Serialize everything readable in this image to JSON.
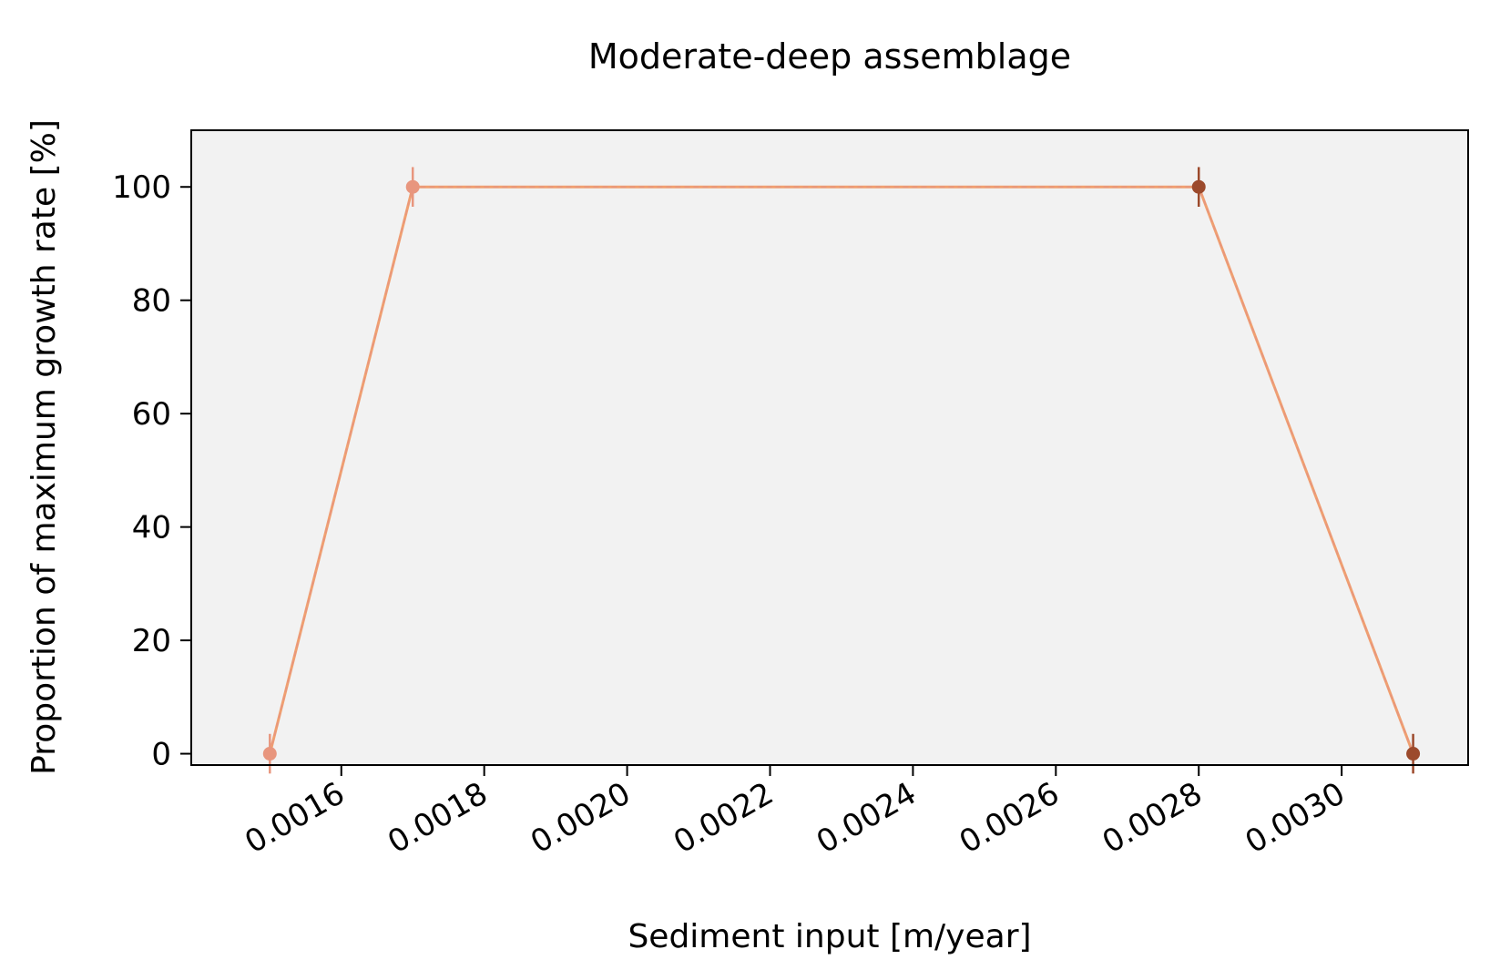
{
  "chart_data": {
    "type": "line",
    "title": "Moderate-deep assemblage",
    "xlabel": "Sediment input [m/year]",
    "ylabel": "Proportion of maximum growth rate [%]",
    "xlim": [
      0.00139,
      0.003177
    ],
    "ylim": [
      -2,
      110
    ],
    "x_ticks": [
      0.0016,
      0.0018,
      0.002,
      0.0022,
      0.0024,
      0.0026,
      0.0028,
      0.003
    ],
    "x_tick_labels": [
      "0.0016",
      "0.0018",
      "0.0020",
      "0.0022",
      "0.0024",
      "0.0026",
      "0.0028",
      "0.0030"
    ],
    "y_ticks": [
      0,
      20,
      40,
      60,
      80,
      100
    ],
    "y_tick_labels": [
      "0",
      "20",
      "40",
      "60",
      "80",
      "100"
    ],
    "plot_background": "#f2f2f2",
    "grid": false,
    "line_color": "#f0a070",
    "series": [
      {
        "x": [
          0.0015,
          0.0017,
          0.0028,
          0.0031
        ],
        "y": [
          0,
          100,
          100,
          0
        ],
        "error": [
          3.5,
          3.5,
          3.5,
          3.5
        ],
        "point_colors": [
          "#e8967e",
          "#e8967e",
          "#9c4a2c",
          "#9c4a2c"
        ]
      }
    ]
  }
}
